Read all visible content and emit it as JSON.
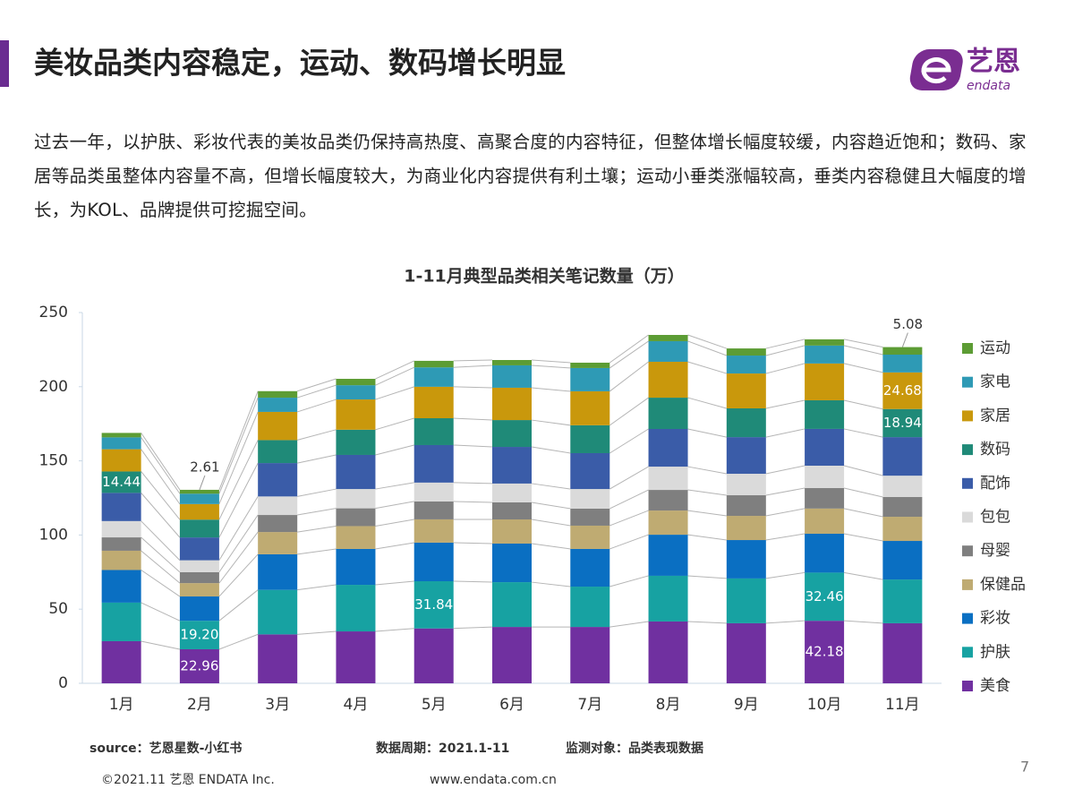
{
  "header": {
    "title": "美妆品类内容稳定，运动、数码增长明显"
  },
  "logo": {
    "name": "艺恩",
    "sub": "endata"
  },
  "body": "过去一年，以护肤、彩妆代表的美妆品类仍保持高热度、高聚合度的内容特征，但整体增长幅度较缓，内容趋近饱和；数码、家居等品类虽整体内容量不高，但增长幅度较大，为商业化内容提供有利土壤；运动小垂类涨幅较高，垂类内容稳健且大幅度的增长，为KOL、品牌提供可挖掘空间。",
  "chart_data": {
    "type": "stacked_bar",
    "title": "1-11月典型品类相关笔记数量（万）",
    "categories": [
      "1月",
      "2月",
      "3月",
      "4月",
      "5月",
      "6月",
      "7月",
      "8月",
      "9月",
      "10月",
      "11月"
    ],
    "ylim": [
      0,
      250
    ],
    "yticks": [
      0,
      50,
      100,
      150,
      200,
      250
    ],
    "grid": false,
    "legend": "right",
    "series": [
      {
        "name": "美食",
        "color": "#7030a0",
        "values": [
          28.4,
          22.96,
          33,
          35,
          37,
          38,
          38,
          41.7,
          40.5,
          42.18,
          40.5
        ],
        "value_labels": [
          null,
          "22.96",
          null,
          null,
          null,
          null,
          null,
          null,
          null,
          "42.18",
          null
        ]
      },
      {
        "name": "护肤",
        "color": "#17a2a2",
        "values": [
          26,
          19.2,
          30,
          31.4,
          31.84,
          30.2,
          27.2,
          30.8,
          30.2,
          32.46,
          29.5
        ],
        "value_labels": [
          null,
          "19.20",
          null,
          null,
          "31.84",
          null,
          null,
          null,
          null,
          "32.46",
          null
        ]
      },
      {
        "name": "彩妆",
        "color": "#0a6fc2",
        "values": [
          22,
          16.4,
          24,
          24.2,
          26,
          26,
          25.4,
          27.7,
          25.9,
          26.2,
          26
        ]
      },
      {
        "name": "保健品",
        "color": "#bfab72",
        "values": [
          13,
          9,
          15,
          15.4,
          15.7,
          16.3,
          15.7,
          16.3,
          16.3,
          17,
          16.3
        ]
      },
      {
        "name": "母婴",
        "color": "#7f7f7f",
        "values": [
          9,
          7.4,
          11.5,
          12,
          12.1,
          11.5,
          11.5,
          13.9,
          13.9,
          13.8,
          13.3
        ]
      },
      {
        "name": "包包",
        "color": "#dadada",
        "values": [
          11,
          8,
          12.5,
          13,
          12.7,
          12.7,
          13.2,
          15.7,
          14.5,
          15.1,
          14.4
        ]
      },
      {
        "name": "配饰",
        "color": "#3a5ca8",
        "values": [
          19,
          15.4,
          22.5,
          23,
          25.3,
          24.7,
          24.2,
          25.4,
          24.7,
          24.8,
          26
        ]
      },
      {
        "name": "数码",
        "color": "#1f8a78",
        "values": [
          14.44,
          12,
          15.5,
          17,
          18.1,
          18.1,
          18.8,
          21.1,
          19.4,
          19.3,
          18.94
        ],
        "value_labels": [
          "14.44",
          null,
          null,
          null,
          null,
          null,
          null,
          null,
          null,
          null,
          "18.94"
        ]
      },
      {
        "name": "家居",
        "color": "#c9980c",
        "values": [
          15,
          10.5,
          19,
          20.4,
          21.2,
          21.8,
          22.9,
          24.2,
          23.5,
          24.8,
          24.68
        ],
        "value_labels": [
          null,
          null,
          null,
          null,
          null,
          null,
          null,
          null,
          null,
          null,
          "24.68"
        ]
      },
      {
        "name": "家电",
        "color": "#2e9ab5",
        "values": [
          8,
          7,
          9.6,
          9.6,
          13.1,
          15.1,
          15.7,
          13.9,
          12.1,
          12.1,
          12
        ]
      },
      {
        "name": "运动",
        "color": "#5c9c34",
        "values": [
          3,
          2.61,
          4.4,
          4.3,
          4.4,
          3.6,
          3.6,
          4.2,
          4.8,
          4.2,
          5.08
        ],
        "value_labels": [
          null,
          "2.61",
          null,
          null,
          null,
          null,
          null,
          null,
          null,
          null,
          "5.08"
        ]
      }
    ]
  },
  "footer": {
    "source": "source：艺恩星数-小红书",
    "period": "数据周期：2021.1-11",
    "object": "监测对象：品类表现数据",
    "page": "7",
    "copyright": "©2021.11 艺恩 ENDATA Inc.",
    "url": "www.endata.com.cn"
  }
}
